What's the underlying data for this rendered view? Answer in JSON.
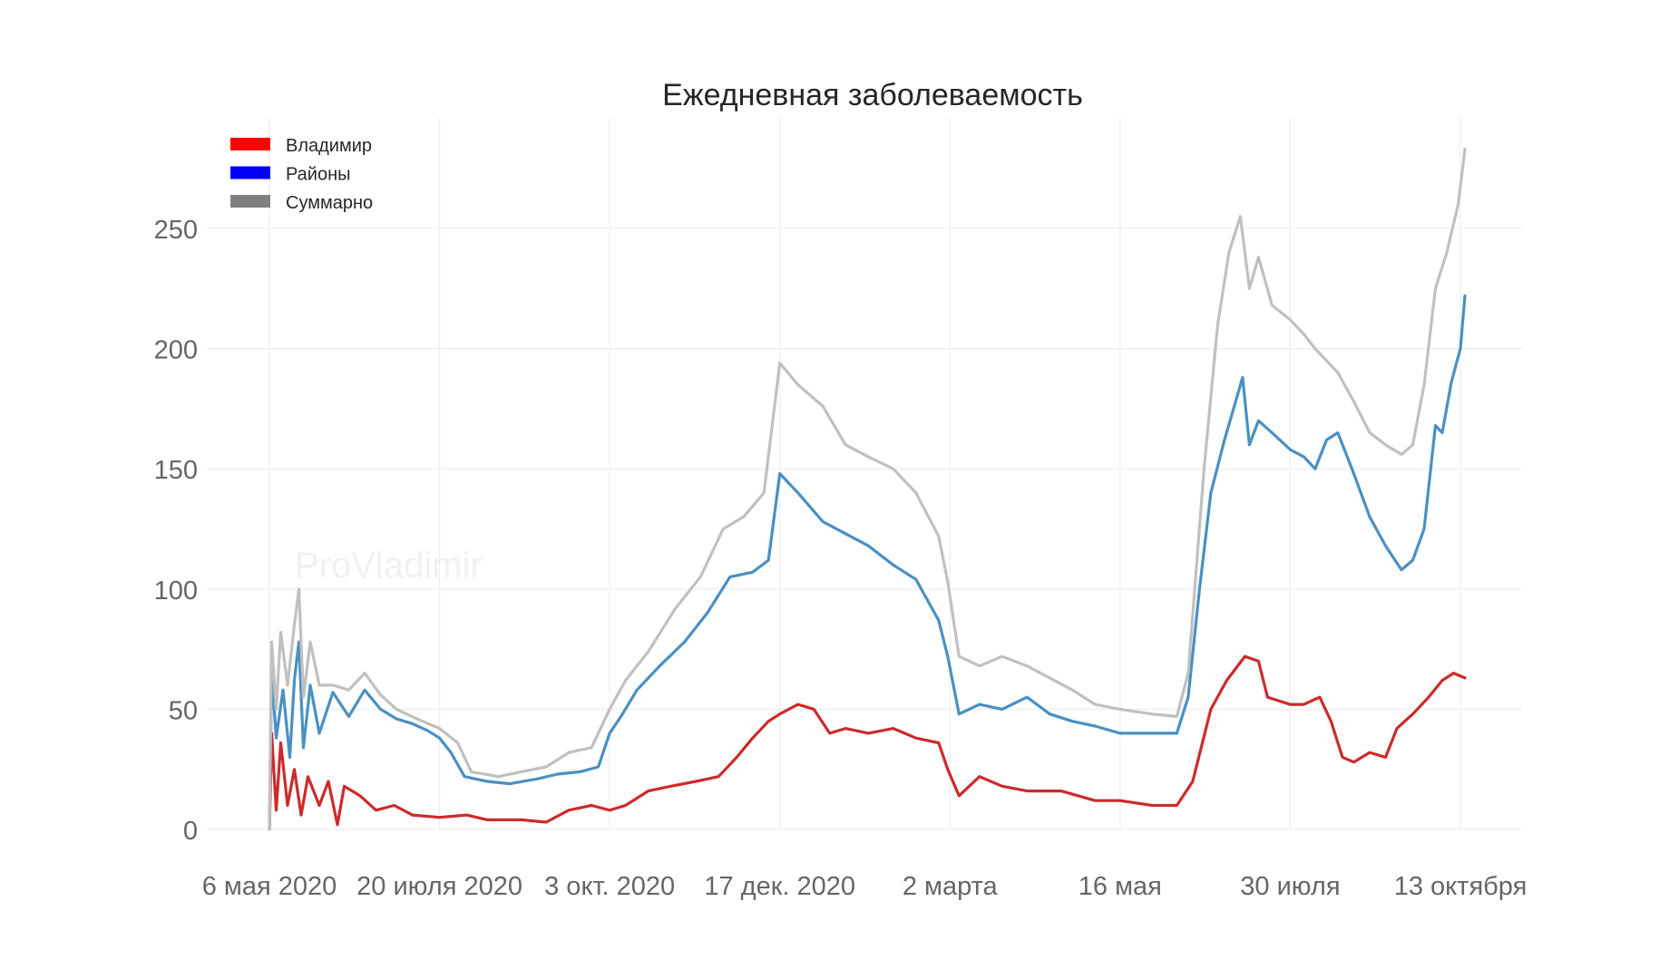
{
  "chart_data": {
    "type": "line",
    "title": "Ежедневная заболеваемость",
    "watermark": "ProVladimir",
    "xlabel": "",
    "ylabel": "",
    "x_range": [
      "2020-05-06",
      "2021-10-15"
    ],
    "ylim": [
      0,
      283
    ],
    "grid": true,
    "legend_position": "top-left",
    "x_ticks": [
      {
        "date": "2020-05-06",
        "label": "6 мая 2020"
      },
      {
        "date": "2020-07-20",
        "label": "20 июля 2020"
      },
      {
        "date": "2020-10-03",
        "label": "3 окт. 2020"
      },
      {
        "date": "2020-12-17",
        "label": "17 дек. 2020"
      },
      {
        "date": "2021-03-02",
        "label": "2 марта"
      },
      {
        "date": "2021-05-16",
        "label": "16 мая"
      },
      {
        "date": "2021-07-30",
        "label": "30 июля"
      },
      {
        "date": "2021-10-13",
        "label": "13 октября"
      }
    ],
    "y_ticks": [
      0,
      50,
      100,
      150,
      200,
      250
    ],
    "legend": [
      {
        "label": "Владимир",
        "color": "#ff0000"
      },
      {
        "label": "Районы",
        "color": "#0000ff"
      },
      {
        "label": "Суммарно",
        "color": "#808080"
      }
    ],
    "series": [
      {
        "name": "Районы",
        "color": "#4a90c2",
        "points": [
          [
            "2020-05-06",
            0
          ],
          [
            "2020-05-07",
            66
          ],
          [
            "2020-05-09",
            38
          ],
          [
            "2020-05-12",
            58
          ],
          [
            "2020-05-15",
            30
          ],
          [
            "2020-05-17",
            62
          ],
          [
            "2020-05-19",
            78
          ],
          [
            "2020-05-21",
            34
          ],
          [
            "2020-05-24",
            60
          ],
          [
            "2020-05-28",
            40
          ],
          [
            "2020-06-03",
            57
          ],
          [
            "2020-06-10",
            47
          ],
          [
            "2020-06-17",
            58
          ],
          [
            "2020-06-24",
            50
          ],
          [
            "2020-07-01",
            46
          ],
          [
            "2020-07-08",
            44
          ],
          [
            "2020-07-15",
            41
          ],
          [
            "2020-07-20",
            38
          ],
          [
            "2020-07-25",
            32
          ],
          [
            "2020-07-31",
            22
          ],
          [
            "2020-08-10",
            20
          ],
          [
            "2020-08-20",
            19
          ],
          [
            "2020-09-01",
            21
          ],
          [
            "2020-09-10",
            23
          ],
          [
            "2020-09-20",
            24
          ],
          [
            "2020-09-28",
            26
          ],
          [
            "2020-10-03",
            40
          ],
          [
            "2020-10-08",
            47
          ],
          [
            "2020-10-15",
            58
          ],
          [
            "2020-10-25",
            68
          ],
          [
            "2020-11-05",
            78
          ],
          [
            "2020-11-15",
            90
          ],
          [
            "2020-11-25",
            105
          ],
          [
            "2020-12-05",
            107
          ],
          [
            "2020-12-12",
            112
          ],
          [
            "2020-12-17",
            148
          ],
          [
            "2020-12-25",
            140
          ],
          [
            "2021-01-05",
            128
          ],
          [
            "2021-01-15",
            123
          ],
          [
            "2021-01-25",
            118
          ],
          [
            "2021-02-05",
            110
          ],
          [
            "2021-02-15",
            104
          ],
          [
            "2021-02-25",
            87
          ],
          [
            "2021-03-01",
            72
          ],
          [
            "2021-03-06",
            48
          ],
          [
            "2021-03-15",
            52
          ],
          [
            "2021-03-25",
            50
          ],
          [
            "2021-04-05",
            55
          ],
          [
            "2021-04-15",
            48
          ],
          [
            "2021-04-25",
            45
          ],
          [
            "2021-05-05",
            43
          ],
          [
            "2021-05-16",
            40
          ],
          [
            "2021-05-25",
            40
          ],
          [
            "2021-06-03",
            40
          ],
          [
            "2021-06-10",
            40
          ],
          [
            "2021-06-15",
            55
          ],
          [
            "2021-06-20",
            100
          ],
          [
            "2021-06-25",
            140
          ],
          [
            "2021-07-01",
            162
          ],
          [
            "2021-07-05",
            175
          ],
          [
            "2021-07-09",
            188
          ],
          [
            "2021-07-12",
            160
          ],
          [
            "2021-07-16",
            170
          ],
          [
            "2021-07-22",
            165
          ],
          [
            "2021-07-30",
            158
          ],
          [
            "2021-08-05",
            155
          ],
          [
            "2021-08-10",
            150
          ],
          [
            "2021-08-15",
            162
          ],
          [
            "2021-08-20",
            165
          ],
          [
            "2021-08-27",
            148
          ],
          [
            "2021-09-03",
            130
          ],
          [
            "2021-09-10",
            118
          ],
          [
            "2021-09-17",
            108
          ],
          [
            "2021-09-22",
            112
          ],
          [
            "2021-09-27",
            125
          ],
          [
            "2021-10-02",
            168
          ],
          [
            "2021-10-05",
            165
          ],
          [
            "2021-10-09",
            186
          ],
          [
            "2021-10-13",
            200
          ],
          [
            "2021-10-15",
            222
          ]
        ]
      },
      {
        "name": "Владимир",
        "color": "#cc2b2b",
        "points": [
          [
            "2020-05-06",
            0
          ],
          [
            "2020-05-07",
            40
          ],
          [
            "2020-05-09",
            8
          ],
          [
            "2020-05-11",
            36
          ],
          [
            "2020-05-14",
            10
          ],
          [
            "2020-05-17",
            25
          ],
          [
            "2020-05-20",
            6
          ],
          [
            "2020-05-23",
            22
          ],
          [
            "2020-05-28",
            10
          ],
          [
            "2020-06-01",
            20
          ],
          [
            "2020-06-05",
            2
          ],
          [
            "2020-06-08",
            18
          ],
          [
            "2020-06-15",
            14
          ],
          [
            "2020-06-22",
            8
          ],
          [
            "2020-06-30",
            10
          ],
          [
            "2020-07-08",
            6
          ],
          [
            "2020-07-20",
            5
          ],
          [
            "2020-08-01",
            6
          ],
          [
            "2020-08-10",
            4
          ],
          [
            "2020-08-25",
            4
          ],
          [
            "2020-09-05",
            3
          ],
          [
            "2020-09-15",
            8
          ],
          [
            "2020-09-25",
            10
          ],
          [
            "2020-10-03",
            8
          ],
          [
            "2020-10-10",
            10
          ],
          [
            "2020-10-20",
            16
          ],
          [
            "2020-10-30",
            18
          ],
          [
            "2020-11-10",
            20
          ],
          [
            "2020-11-20",
            22
          ],
          [
            "2020-11-28",
            30
          ],
          [
            "2020-12-05",
            38
          ],
          [
            "2020-12-12",
            45
          ],
          [
            "2020-12-17",
            48
          ],
          [
            "2020-12-25",
            52
          ],
          [
            "2021-01-01",
            50
          ],
          [
            "2021-01-08",
            40
          ],
          [
            "2021-01-15",
            42
          ],
          [
            "2021-01-25",
            40
          ],
          [
            "2021-02-05",
            42
          ],
          [
            "2021-02-15",
            38
          ],
          [
            "2021-02-25",
            36
          ],
          [
            "2021-03-01",
            25
          ],
          [
            "2021-03-06",
            14
          ],
          [
            "2021-03-15",
            22
          ],
          [
            "2021-03-25",
            18
          ],
          [
            "2021-04-05",
            16
          ],
          [
            "2021-04-20",
            16
          ],
          [
            "2021-05-05",
            12
          ],
          [
            "2021-05-16",
            12
          ],
          [
            "2021-05-30",
            10
          ],
          [
            "2021-06-10",
            10
          ],
          [
            "2021-06-17",
            20
          ],
          [
            "2021-06-25",
            50
          ],
          [
            "2021-07-02",
            62
          ],
          [
            "2021-07-10",
            72
          ],
          [
            "2021-07-16",
            70
          ],
          [
            "2021-07-20",
            55
          ],
          [
            "2021-07-30",
            52
          ],
          [
            "2021-08-05",
            52
          ],
          [
            "2021-08-12",
            55
          ],
          [
            "2021-08-17",
            45
          ],
          [
            "2021-08-22",
            30
          ],
          [
            "2021-08-27",
            28
          ],
          [
            "2021-09-03",
            32
          ],
          [
            "2021-09-10",
            30
          ],
          [
            "2021-09-15",
            42
          ],
          [
            "2021-09-22",
            48
          ],
          [
            "2021-09-29",
            55
          ],
          [
            "2021-10-05",
            62
          ],
          [
            "2021-10-10",
            65
          ],
          [
            "2021-10-15",
            63
          ]
        ]
      },
      {
        "name": "Суммарно",
        "color": "#c0c0c0",
        "points": [
          [
            "2020-05-06",
            0
          ],
          [
            "2020-05-07",
            78
          ],
          [
            "2020-05-09",
            50
          ],
          [
            "2020-05-11",
            82
          ],
          [
            "2020-05-14",
            60
          ],
          [
            "2020-05-17",
            85
          ],
          [
            "2020-05-19",
            100
          ],
          [
            "2020-05-21",
            55
          ],
          [
            "2020-05-24",
            78
          ],
          [
            "2020-05-28",
            60
          ],
          [
            "2020-06-03",
            60
          ],
          [
            "2020-06-10",
            58
          ],
          [
            "2020-06-17",
            65
          ],
          [
            "2020-06-24",
            56
          ],
          [
            "2020-07-01",
            50
          ],
          [
            "2020-07-10",
            46
          ],
          [
            "2020-07-20",
            42
          ],
          [
            "2020-07-28",
            36
          ],
          [
            "2020-08-03",
            24
          ],
          [
            "2020-08-15",
            22
          ],
          [
            "2020-08-25",
            24
          ],
          [
            "2020-09-05",
            26
          ],
          [
            "2020-09-15",
            32
          ],
          [
            "2020-09-25",
            34
          ],
          [
            "2020-10-03",
            50
          ],
          [
            "2020-10-10",
            62
          ],
          [
            "2020-10-20",
            74
          ],
          [
            "2020-11-01",
            92
          ],
          [
            "2020-11-12",
            105
          ],
          [
            "2020-11-22",
            125
          ],
          [
            "2020-12-01",
            130
          ],
          [
            "2020-12-10",
            140
          ],
          [
            "2020-12-17",
            194
          ],
          [
            "2020-12-25",
            185
          ],
          [
            "2021-01-05",
            176
          ],
          [
            "2021-01-15",
            160
          ],
          [
            "2021-01-25",
            155
          ],
          [
            "2021-02-05",
            150
          ],
          [
            "2021-02-15",
            140
          ],
          [
            "2021-02-25",
            122
          ],
          [
            "2021-03-01",
            103
          ],
          [
            "2021-03-06",
            72
          ],
          [
            "2021-03-15",
            68
          ],
          [
            "2021-03-25",
            72
          ],
          [
            "2021-04-05",
            68
          ],
          [
            "2021-04-15",
            63
          ],
          [
            "2021-04-25",
            58
          ],
          [
            "2021-05-05",
            52
          ],
          [
            "2021-05-16",
            50
          ],
          [
            "2021-05-30",
            48
          ],
          [
            "2021-06-10",
            47
          ],
          [
            "2021-06-15",
            65
          ],
          [
            "2021-06-22",
            150
          ],
          [
            "2021-06-28",
            210
          ],
          [
            "2021-07-03",
            240
          ],
          [
            "2021-07-08",
            255
          ],
          [
            "2021-07-12",
            225
          ],
          [
            "2021-07-16",
            238
          ],
          [
            "2021-07-22",
            218
          ],
          [
            "2021-07-30",
            212
          ],
          [
            "2021-08-05",
            206
          ],
          [
            "2021-08-10",
            200
          ],
          [
            "2021-08-20",
            190
          ],
          [
            "2021-08-27",
            178
          ],
          [
            "2021-09-03",
            165
          ],
          [
            "2021-09-10",
            160
          ],
          [
            "2021-09-17",
            156
          ],
          [
            "2021-09-22",
            160
          ],
          [
            "2021-09-27",
            185
          ],
          [
            "2021-10-02",
            225
          ],
          [
            "2021-10-07",
            240
          ],
          [
            "2021-10-12",
            260
          ],
          [
            "2021-10-15",
            283
          ]
        ]
      }
    ]
  }
}
